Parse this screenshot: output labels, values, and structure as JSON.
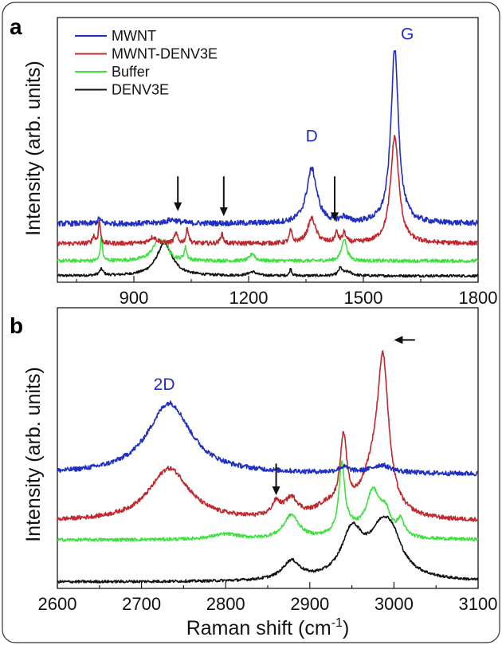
{
  "chart_data": [
    {
      "panel": "a",
      "type": "line",
      "xlabel": "",
      "ylabel": "Intensity (arb. units)",
      "xlim": [
        700,
        1800
      ],
      "xticks": [
        900,
        1200,
        1500,
        1800
      ],
      "ylim": [
        0,
        100
      ],
      "y_tick_labels": false,
      "grid": false,
      "legend": {
        "placement": "top-left",
        "entries": [
          {
            "name": "MWNT",
            "color": "#1f2fc4"
          },
          {
            "name": "MWNT-DENV3E",
            "color": "#c0282d"
          },
          {
            "name": "Buffer",
            "color": "#3ee23e"
          },
          {
            "name": "DENV3E",
            "color": "#111111"
          }
        ]
      },
      "annotations": [
        {
          "text": "D",
          "x": 1365,
          "y": 54,
          "color": "#1f2fc4"
        },
        {
          "text": "G",
          "x": 1615,
          "y": 95,
          "color": "#1f2fc4"
        }
      ],
      "arrows": [
        {
          "direction": "down",
          "x": 1015,
          "y_from": 40,
          "y_to": 26
        },
        {
          "direction": "down",
          "x": 1135,
          "y_from": 40,
          "y_to": 24
        },
        {
          "direction": "down",
          "x": 1425,
          "y_from": 40,
          "y_to": 22
        }
      ],
      "series": [
        {
          "name": "MWNT",
          "color": "#1f2fc4",
          "baseline": 21,
          "noise": 1.1,
          "peaks": [
            [
              810,
              2,
              10
            ],
            [
              1000,
              1.5,
              40
            ],
            [
              1365,
              22,
              32
            ],
            [
              1450,
              2,
              20
            ],
            [
              1582,
              70,
              24
            ]
          ]
        },
        {
          "name": "MWNT-DENV3E",
          "color": "#c0282d",
          "baseline": 13,
          "noise": 0.9,
          "peaks": [
            [
              810,
              9,
              6
            ],
            [
              795,
              3,
              8
            ],
            [
              950,
              2.5,
              25
            ],
            [
              1010,
              4,
              10
            ],
            [
              1040,
              6,
              8
            ],
            [
              1130,
              4,
              8
            ],
            [
              1310,
              5,
              8
            ],
            [
              1365,
              10,
              25
            ],
            [
              1430,
              4,
              10
            ],
            [
              1450,
              4,
              10
            ],
            [
              1582,
              43,
              26
            ]
          ]
        },
        {
          "name": "Buffer",
          "color": "#3ee23e",
          "baseline": 6,
          "noise": 0.7,
          "peaks": [
            [
              815,
              10,
              6
            ],
            [
              965,
              8,
              40
            ],
            [
              985,
              4,
              12
            ],
            [
              1035,
              5,
              8
            ],
            [
              1210,
              3,
              15
            ],
            [
              1450,
              9,
              16
            ]
          ]
        },
        {
          "name": "DENV3E",
          "color": "#111111",
          "baseline": 0,
          "noise": 0.5,
          "peaks": [
            [
              815,
              2.5,
              12
            ],
            [
              980,
              13,
              50
            ],
            [
              1210,
              1.5,
              25
            ],
            [
              1310,
              3,
              6
            ],
            [
              1440,
              3,
              12
            ],
            [
              1460,
              1.5,
              25
            ]
          ]
        }
      ]
    },
    {
      "panel": "b",
      "type": "line",
      "xlabel": "Raman shift (cm-1)",
      "ylabel": "Intensity (arb. units)",
      "xlim": [
        2600,
        3100
      ],
      "xticks": [
        2600,
        2700,
        2800,
        2900,
        3000,
        3100
      ],
      "ylim": [
        0,
        100
      ],
      "y_tick_labels": false,
      "grid": false,
      "annotations": [
        {
          "text": "2D",
          "x": 2727,
          "y": 73,
          "color": "#1f2fc4"
        }
      ],
      "arrows": [
        {
          "direction": "down",
          "x": 2860,
          "y_from": 45,
          "y_to": 33
        },
        {
          "direction": "left",
          "x_from": 3025,
          "x_to": 3000,
          "y": 92
        }
      ],
      "series": [
        {
          "name": "MWNT",
          "color": "#1f2fc4",
          "baseline": 41,
          "noise": 0.9,
          "peaks": [
            [
              2733,
              27,
              62
            ],
            [
              2940,
              2,
              15
            ],
            [
              2985,
              3,
              30
            ]
          ]
        },
        {
          "name": "MWNT-DENV3E",
          "color": "#c0282d",
          "baseline": 23,
          "noise": 0.8,
          "peaks": [
            [
              2733,
              20,
              58
            ],
            [
              2860,
              5,
              12
            ],
            [
              2878,
              7,
              20
            ],
            [
              2920,
              4,
              35
            ],
            [
              2940,
              27,
              10
            ],
            [
              2975,
              15,
              35
            ],
            [
              2987,
              53,
              16
            ]
          ]
        },
        {
          "name": "Buffer",
          "color": "#3ee23e",
          "baseline": 16,
          "noise": 0.6,
          "peaks": [
            [
              2878,
              9,
              22
            ],
            [
              2938,
              25,
              8
            ],
            [
              2945,
              4,
              30
            ],
            [
              2975,
              17,
              20
            ],
            [
              2990,
              8,
              15
            ],
            [
              3008,
              6,
              10
            ],
            [
              2800,
              2,
              40
            ]
          ]
        },
        {
          "name": "DENV3E",
          "color": "#111111",
          "baseline": 0,
          "noise": 0.5,
          "peaks": [
            [
              2878,
              7,
              25
            ],
            [
              2950,
              17,
              30
            ],
            [
              2988,
              21,
              42
            ],
            [
              3000,
              4,
              20
            ]
          ]
        }
      ]
    }
  ]
}
